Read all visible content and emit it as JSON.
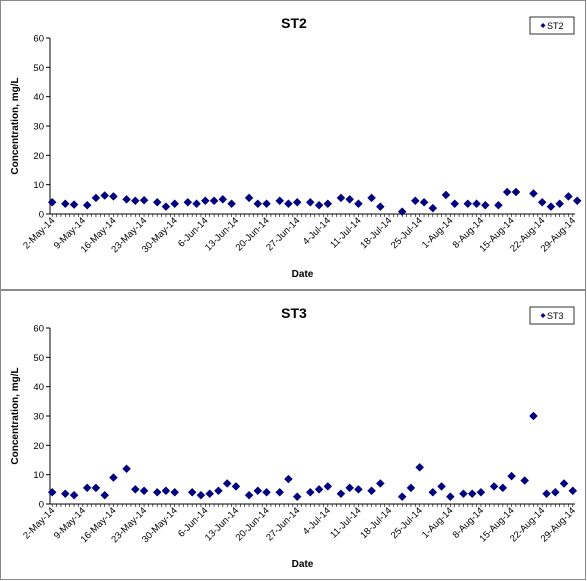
{
  "chart_data": [
    {
      "type": "scatter",
      "title": "ST2",
      "xlabel": "Date",
      "ylabel": "Concentration, mg/L",
      "ylim": [
        0,
        60
      ],
      "yticks": [
        0,
        10,
        20,
        30,
        40,
        50,
        60
      ],
      "xlim": [
        "2014-05-02",
        "2014-08-29"
      ],
      "xtick_labels": [
        "2-May-14",
        "9-May-14",
        "16-May-14",
        "23-May-14",
        "30-May-14",
        "6-Jun-14",
        "13-Jun-14",
        "20-Jun-14",
        "27-Jun-14",
        "4-Jul-14",
        "11-Jul-14",
        "18-Jul-14",
        "25-Jul-14",
        "1-Aug-14",
        "8-Aug-14",
        "15-Aug-14",
        "22-Aug-14",
        "29-Aug-14"
      ],
      "legend_position": "top-right",
      "marker_color": "#000080",
      "series": [
        {
          "name": "ST2",
          "x": [
            "2014-05-02",
            "2014-05-05",
            "2014-05-07",
            "2014-05-10",
            "2014-05-12",
            "2014-05-14",
            "2014-05-16",
            "2014-05-19",
            "2014-05-21",
            "2014-05-23",
            "2014-05-26",
            "2014-05-28",
            "2014-05-30",
            "2014-06-02",
            "2014-06-04",
            "2014-06-06",
            "2014-06-08",
            "2014-06-10",
            "2014-06-12",
            "2014-06-16",
            "2014-06-18",
            "2014-06-20",
            "2014-06-23",
            "2014-06-25",
            "2014-06-27",
            "2014-06-30",
            "2014-07-02",
            "2014-07-04",
            "2014-07-07",
            "2014-07-09",
            "2014-07-11",
            "2014-07-14",
            "2014-07-16",
            "2014-07-21",
            "2014-07-24",
            "2014-07-26",
            "2014-07-28",
            "2014-07-31",
            "2014-08-02",
            "2014-08-05",
            "2014-08-07",
            "2014-08-09",
            "2014-08-12",
            "2014-08-14",
            "2014-08-16",
            "2014-08-20",
            "2014-08-22",
            "2014-08-24",
            "2014-08-26",
            "2014-08-28",
            "2014-08-30"
          ],
          "y": [
            4.0,
            3.5,
            3.2,
            3.0,
            5.5,
            6.3,
            6.0,
            5.0,
            4.5,
            4.7,
            4.0,
            2.5,
            3.5,
            4.0,
            3.5,
            4.5,
            4.5,
            5.0,
            3.5,
            5.5,
            3.5,
            3.5,
            4.5,
            3.5,
            4.0,
            4.0,
            3.0,
            3.5,
            5.5,
            5.0,
            3.5,
            5.5,
            2.5,
            0.8,
            4.5,
            4.0,
            2.0,
            6.5,
            3.5,
            3.5,
            3.5,
            3.0,
            3.0,
            7.5,
            7.5,
            7.0,
            4.0,
            2.5,
            3.5,
            6.0,
            4.5
          ]
        }
      ]
    },
    {
      "type": "scatter",
      "title": "ST3",
      "xlabel": "Date",
      "ylabel": "Concentration, mg/L",
      "ylim": [
        0,
        60
      ],
      "yticks": [
        0,
        10,
        20,
        30,
        40,
        50,
        60
      ],
      "xlim": [
        "2014-05-02",
        "2014-08-29"
      ],
      "xtick_labels": [
        "2-May-14",
        "9-May-14",
        "16-May-14",
        "23-May-14",
        "30-May-14",
        "6-Jun-14",
        "13-Jun-14",
        "20-Jun-14",
        "27-Jun-14",
        "4-Jul-14",
        "11-Jul-14",
        "18-Jul-14",
        "25-Jul-14",
        "1-Aug-14",
        "8-Aug-14",
        "15-Aug-14",
        "22-Aug-14",
        "29-Aug-14"
      ],
      "legend_position": "top-right",
      "marker_color": "#000080",
      "series": [
        {
          "name": "ST3",
          "x": [
            "2014-05-02",
            "2014-05-05",
            "2014-05-07",
            "2014-05-10",
            "2014-05-12",
            "2014-05-14",
            "2014-05-16",
            "2014-05-19",
            "2014-05-21",
            "2014-05-23",
            "2014-05-26",
            "2014-05-28",
            "2014-05-30",
            "2014-06-03",
            "2014-06-05",
            "2014-06-07",
            "2014-06-09",
            "2014-06-11",
            "2014-06-13",
            "2014-06-16",
            "2014-06-18",
            "2014-06-20",
            "2014-06-23",
            "2014-06-25",
            "2014-06-27",
            "2014-06-30",
            "2014-07-02",
            "2014-07-04",
            "2014-07-07",
            "2014-07-09",
            "2014-07-11",
            "2014-07-14",
            "2014-07-16",
            "2014-07-21",
            "2014-07-23",
            "2014-07-25",
            "2014-07-28",
            "2014-07-30",
            "2014-08-01",
            "2014-08-04",
            "2014-08-06",
            "2014-08-08",
            "2014-08-11",
            "2014-08-13",
            "2014-08-15",
            "2014-08-18",
            "2014-08-20",
            "2014-08-23",
            "2014-08-25",
            "2014-08-27",
            "2014-08-29"
          ],
          "y": [
            4.0,
            3.5,
            3.0,
            5.5,
            5.5,
            3.0,
            9.0,
            12.0,
            5.0,
            4.5,
            4.0,
            4.5,
            4.0,
            4.0,
            3.0,
            3.5,
            4.5,
            7.0,
            6.0,
            3.0,
            4.5,
            4.0,
            4.0,
            8.5,
            2.5,
            4.0,
            5.0,
            6.0,
            3.5,
            5.5,
            5.0,
            4.5,
            7.0,
            2.5,
            5.5,
            12.5,
            4.0,
            6.0,
            2.5,
            3.5,
            3.5,
            4.0,
            6.0,
            5.5,
            9.5,
            8.0,
            30.0,
            3.5,
            4.0,
            7.0,
            4.5
          ]
        }
      ]
    }
  ]
}
